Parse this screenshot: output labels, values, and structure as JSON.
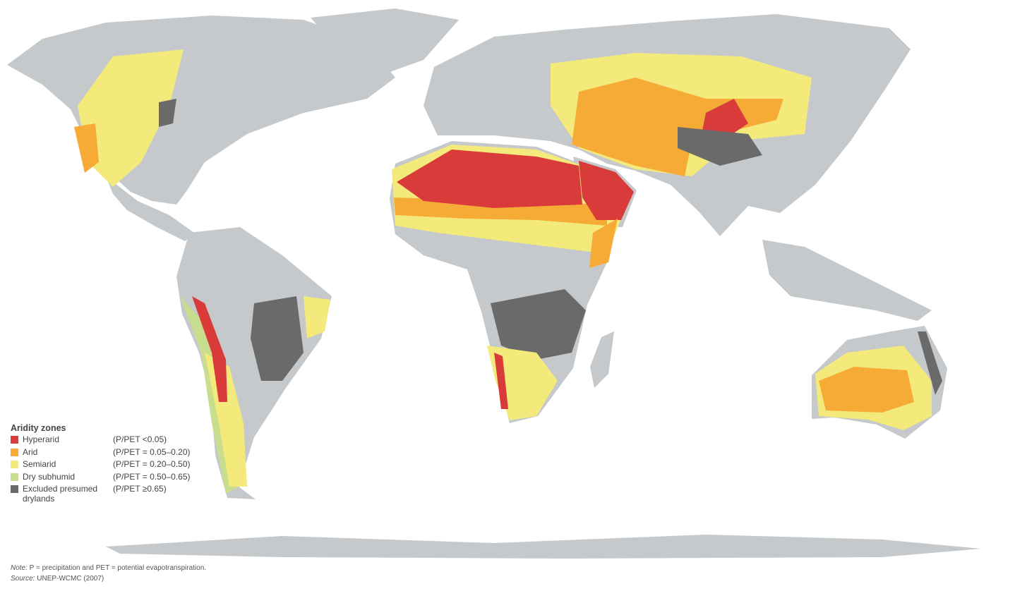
{
  "legend": {
    "title": "Aridity zones",
    "items": [
      {
        "label": "Hyperarid",
        "range": "(P/PET <0.05)",
        "color": "#d93b3b"
      },
      {
        "label": "Arid",
        "range": "(P/PET = 0.05–0.20)",
        "color": "#f6ab37"
      },
      {
        "label": "Semiarid",
        "range": "(P/PET = 0.20–0.50)",
        "color": "#f4ea7c"
      },
      {
        "label": "Dry subhumid",
        "range": "(P/PET = 0.50–0.65)",
        "color": "#c9dd8f"
      },
      {
        "label": "Excluded presumed drylands",
        "range": "(P/PET ≥0.65)",
        "color": "#6a6a6a"
      }
    ]
  },
  "notes": {
    "note_label": "Note:",
    "note_text": " P = precipitation and PET = potential evapotranspiration.",
    "source_label": "Source:",
    "source_text": " UNEP-WCMC (2007)"
  },
  "colors": {
    "land": "#c5c9cb",
    "background": "#ffffff"
  }
}
